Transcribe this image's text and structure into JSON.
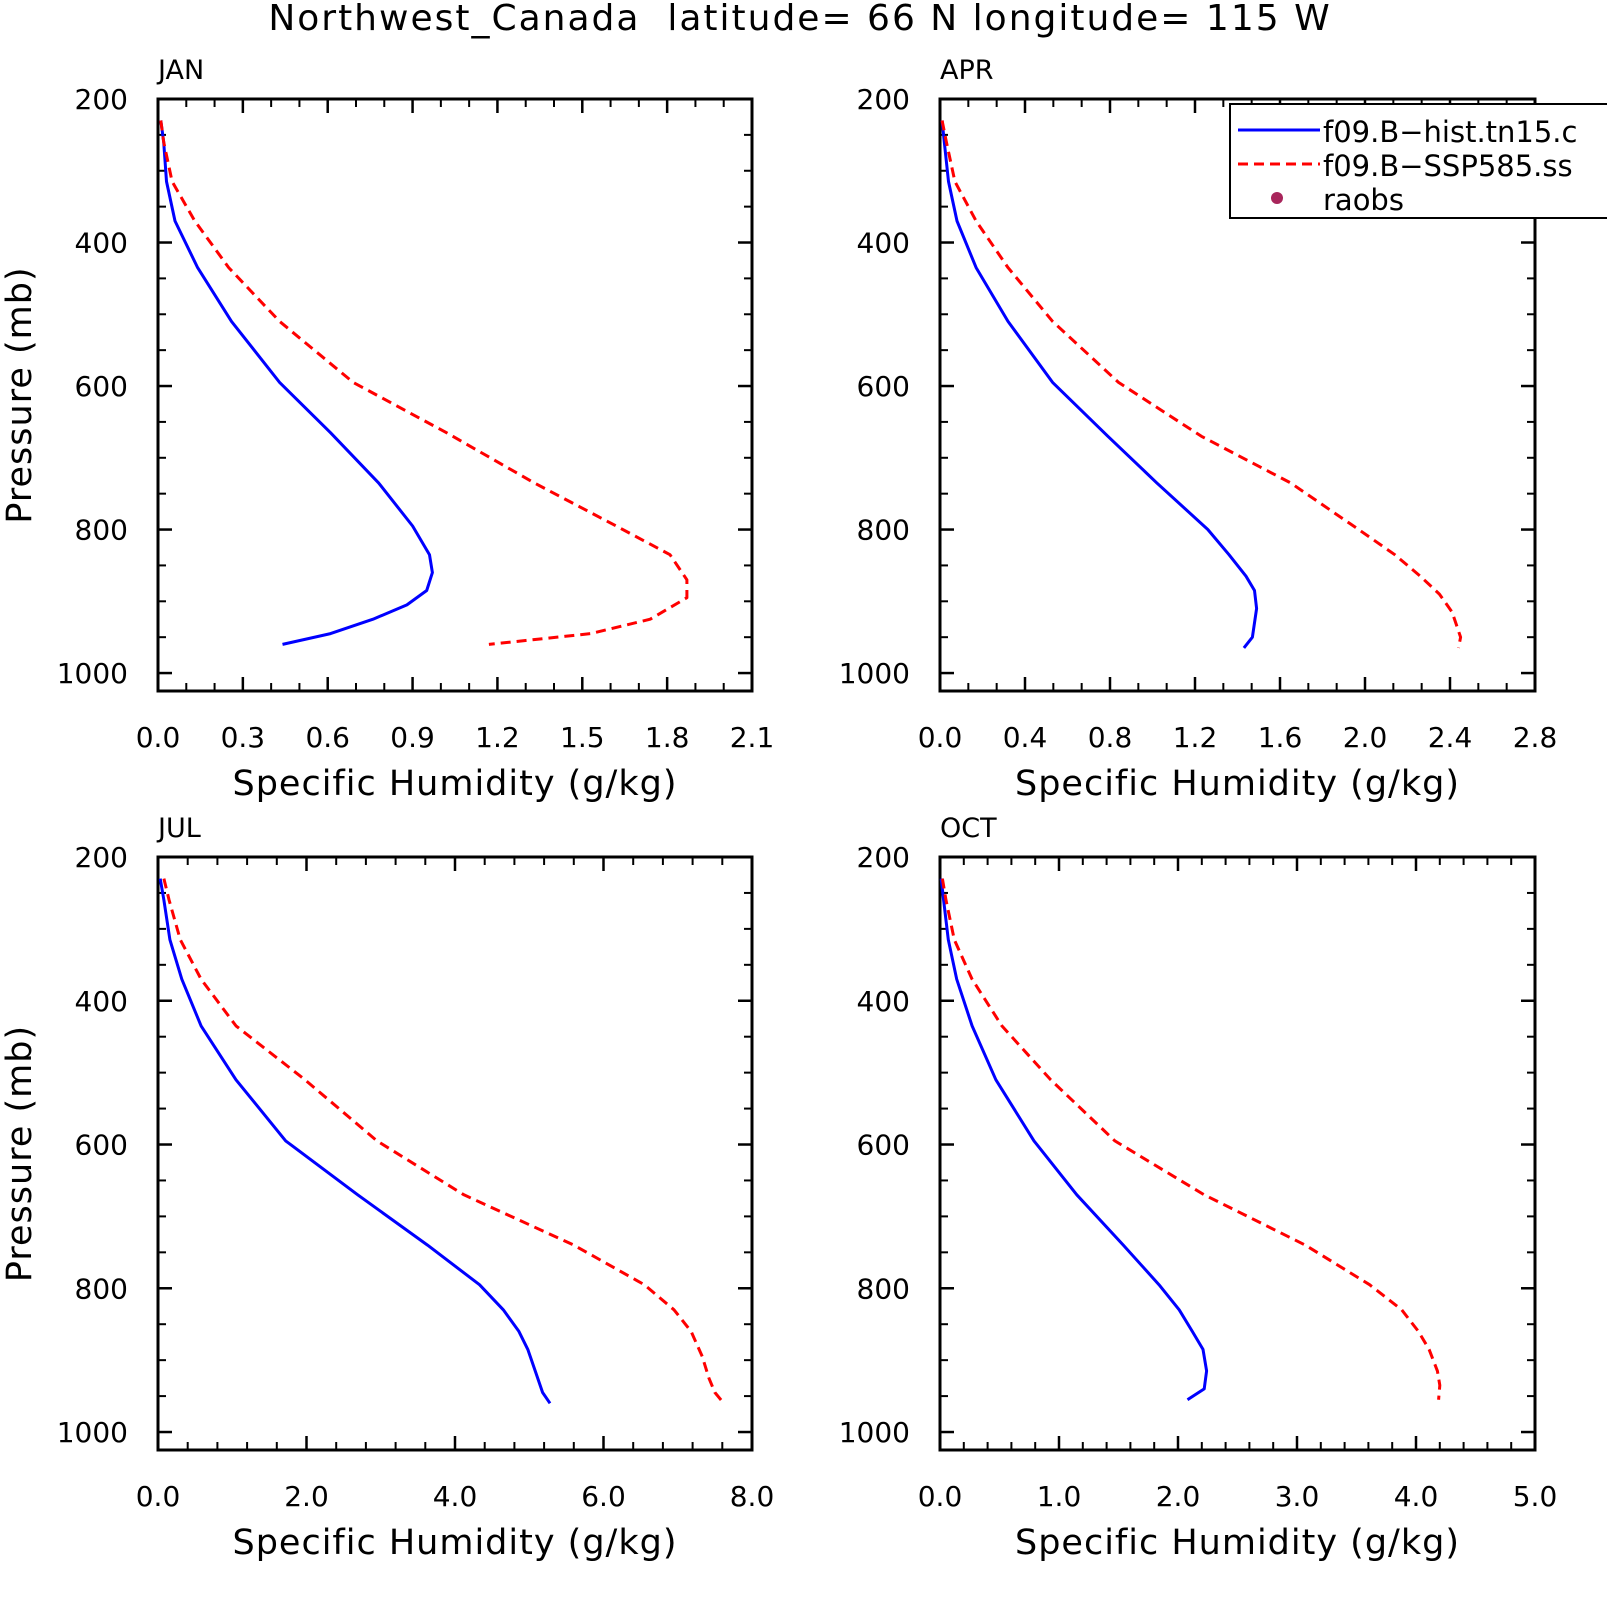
{
  "figure": {
    "title": "Northwest_Canada  latitude= 66 N longitude= 115 W"
  },
  "colors": {
    "hist": "#0000ff",
    "ssp": "#ff0000",
    "raobs": "#a8255b",
    "axes": "#000000"
  },
  "legend": {
    "entries": [
      {
        "label": "f09.B−hist.tn15.c",
        "style": "solid",
        "color": "#0000ff"
      },
      {
        "label": "f09.B−SSP585.ss",
        "style": "dashed",
        "color": "#ff0000"
      },
      {
        "label": "raobs",
        "style": "marker",
        "color": "#a8255b"
      }
    ]
  },
  "chart_data": [
    {
      "type": "line",
      "panel": "JAN",
      "xlabel": "Specific Humidity (g/kg)",
      "ylabel": "Pressure (mb)",
      "xlim": [
        0,
        2.1
      ],
      "ylim": [
        1000,
        200
      ],
      "y_reversed": true,
      "xticks": [
        "0.0",
        "0.3",
        "0.6",
        "0.9",
        "1.2",
        "1.5",
        "1.8",
        "2.1"
      ],
      "yticks": [
        "200",
        "400",
        "600",
        "800",
        "1000"
      ],
      "series": [
        {
          "name": "f09.B−hist.tn15.c",
          "style": "solid",
          "color": "#0000ff",
          "x": [
            0.01,
            0.02,
            0.03,
            0.06,
            0.14,
            0.26,
            0.43,
            0.61,
            0.78,
            0.9,
            0.96,
            0.97,
            0.95,
            0.88,
            0.76,
            0.61,
            0.44
          ],
          "y": [
            230,
            260,
            315,
            370,
            435,
            510,
            595,
            665,
            735,
            795,
            835,
            860,
            885,
            905,
            925,
            945,
            960
          ]
        },
        {
          "name": "f09.B−SSP585.ss",
          "style": "dashed",
          "color": "#ff0000",
          "x": [
            0.01,
            0.02,
            0.05,
            0.13,
            0.25,
            0.43,
            0.69,
            1.02,
            1.33,
            1.62,
            1.81,
            1.87,
            1.87,
            1.74,
            1.53,
            1.17
          ],
          "y": [
            230,
            260,
            315,
            370,
            435,
            510,
            595,
            665,
            735,
            795,
            835,
            870,
            895,
            925,
            945,
            960
          ]
        }
      ]
    },
    {
      "type": "line",
      "panel": "APR",
      "xlabel": "Specific Humidity (g/kg)",
      "ylabel": "",
      "xlim": [
        0,
        2.8
      ],
      "ylim": [
        1000,
        200
      ],
      "y_reversed": true,
      "xticks": [
        "0.0",
        "0.4",
        "0.8",
        "1.2",
        "1.6",
        "2.0",
        "2.4",
        "2.8"
      ],
      "yticks": [
        "200",
        "400",
        "600",
        "800",
        "1000"
      ],
      "series": [
        {
          "name": "f09.B−hist.tn15.c",
          "style": "solid",
          "color": "#0000ff",
          "x": [
            0.01,
            0.02,
            0.04,
            0.08,
            0.17,
            0.32,
            0.53,
            0.79,
            1.02,
            1.26,
            1.36,
            1.44,
            1.48,
            1.49,
            1.47,
            1.43
          ],
          "y": [
            230,
            260,
            315,
            370,
            435,
            510,
            595,
            670,
            735,
            800,
            835,
            865,
            885,
            910,
            950,
            965
          ]
        },
        {
          "name": "f09.B−SSP585.ss",
          "style": "dashed",
          "color": "#ff0000",
          "x": [
            0.01,
            0.03,
            0.07,
            0.17,
            0.32,
            0.53,
            0.84,
            1.23,
            1.65,
            1.97,
            2.14,
            2.26,
            2.35,
            2.41,
            2.45,
            2.44
          ],
          "y": [
            230,
            260,
            315,
            370,
            435,
            510,
            595,
            670,
            735,
            800,
            835,
            865,
            890,
            915,
            950,
            965
          ]
        },
        {
          "name": "raobs",
          "style": "marker",
          "color": "#a8255b",
          "x": [],
          "y": []
        }
      ]
    },
    {
      "type": "line",
      "panel": "JUL",
      "xlabel": "Specific Humidity (g/kg)",
      "ylabel": "Pressure (mb)",
      "xlim": [
        0,
        8.0
      ],
      "ylim": [
        1000,
        200
      ],
      "y_reversed": true,
      "xticks": [
        "0.0",
        "2.0",
        "4.0",
        "6.0",
        "8.0"
      ],
      "yticks": [
        "200",
        "400",
        "600",
        "800",
        "1000"
      ],
      "series": [
        {
          "name": "f09.B−hist.tn15.c",
          "style": "solid",
          "color": "#0000ff",
          "x": [
            0.03,
            0.08,
            0.16,
            0.32,
            0.58,
            1.05,
            1.72,
            2.69,
            3.63,
            4.33,
            4.65,
            4.86,
            4.98,
            5.08,
            5.18,
            5.28
          ],
          "y": [
            230,
            260,
            315,
            370,
            435,
            510,
            595,
            670,
            740,
            795,
            830,
            860,
            885,
            915,
            945,
            960
          ]
        },
        {
          "name": "f09.B−SSP585.ss",
          "style": "dashed",
          "color": "#ff0000",
          "x": [
            0.08,
            0.15,
            0.3,
            0.58,
            1.05,
            1.98,
            2.95,
            4.12,
            5.6,
            6.55,
            6.95,
            7.18,
            7.33,
            7.42,
            7.5,
            7.62
          ],
          "y": [
            230,
            260,
            315,
            370,
            435,
            510,
            595,
            670,
            740,
            795,
            830,
            860,
            895,
            925,
            945,
            960
          ]
        }
      ]
    },
    {
      "type": "line",
      "panel": "OCT",
      "xlabel": "Specific Humidity (g/kg)",
      "ylabel": "",
      "xlim": [
        0,
        5.0
      ],
      "ylim": [
        1000,
        200
      ],
      "y_reversed": true,
      "xticks": [
        "0.0",
        "1.0",
        "2.0",
        "3.0",
        "4.0",
        "5.0"
      ],
      "yticks": [
        "200",
        "400",
        "600",
        "800",
        "1000"
      ],
      "series": [
        {
          "name": "f09.B−hist.tn15.c",
          "style": "solid",
          "color": "#0000ff",
          "x": [
            0.01,
            0.03,
            0.07,
            0.14,
            0.27,
            0.47,
            0.79,
            1.15,
            1.54,
            1.84,
            2.01,
            2.12,
            2.21,
            2.24,
            2.22,
            2.08
          ],
          "y": [
            230,
            260,
            315,
            370,
            435,
            510,
            595,
            670,
            740,
            795,
            830,
            860,
            885,
            915,
            940,
            955
          ]
        },
        {
          "name": "f09.B−SSP585.ss",
          "style": "dashed",
          "color": "#ff0000",
          "x": [
            0.02,
            0.05,
            0.12,
            0.27,
            0.52,
            0.93,
            1.47,
            2.22,
            3.07,
            3.61,
            3.88,
            4.02,
            4.11,
            4.18,
            4.2,
            4.19
          ],
          "y": [
            230,
            260,
            315,
            370,
            435,
            510,
            595,
            670,
            740,
            795,
            830,
            860,
            885,
            915,
            935,
            955
          ]
        }
      ]
    }
  ]
}
